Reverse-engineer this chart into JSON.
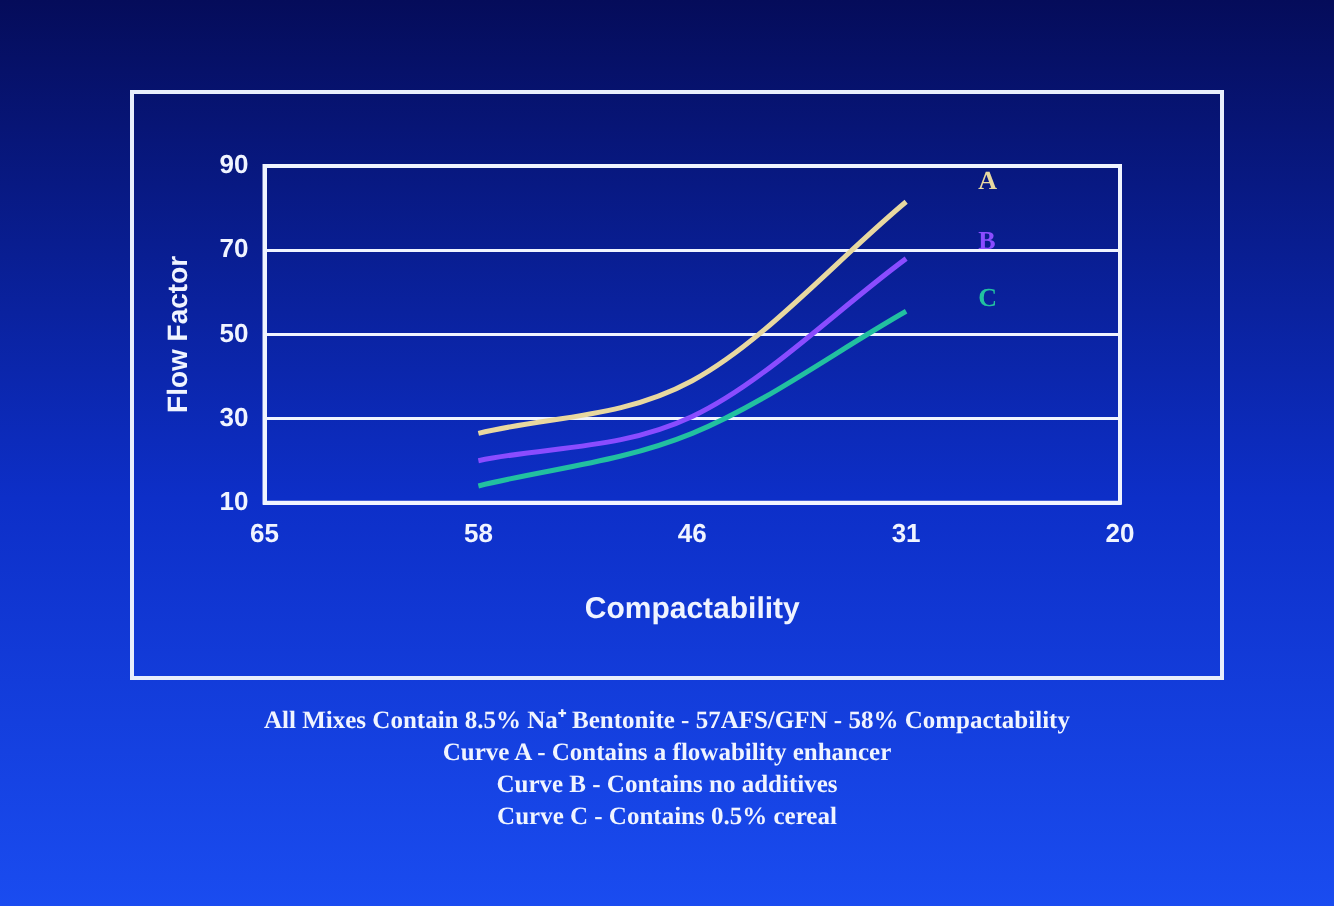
{
  "chart_data": {
    "type": "line",
    "xlabel": "Compactability",
    "ylabel": "Flow Factor",
    "categories": [
      "65",
      "58",
      "46",
      "31",
      "20"
    ],
    "series": [
      {
        "name": "A",
        "color": "#e8d8a0",
        "values": [
          null,
          26.5,
          39,
          81.5,
          null
        ]
      },
      {
        "name": "B",
        "color": "#8a4cff",
        "values": [
          null,
          20,
          30.5,
          68,
          null
        ]
      },
      {
        "name": "C",
        "color": "#22c0a0",
        "values": [
          null,
          14,
          26.5,
          55.5,
          null
        ]
      }
    ],
    "ylim": [
      10,
      90
    ],
    "yticks": [
      10,
      30,
      50,
      70,
      90
    ],
    "grid": "y",
    "legend": false,
    "marker": "none",
    "line_style": "solid",
    "annotations": [
      "All Mixes Contain 8.5% Na⁺ Bentonite - 57AFS/GFN - 58% Compactability",
      "Curve A - Contains a flowability enhancer",
      "Curve B - Contains no additives",
      "Curve C - Contains 0.5% cereal"
    ]
  }
}
